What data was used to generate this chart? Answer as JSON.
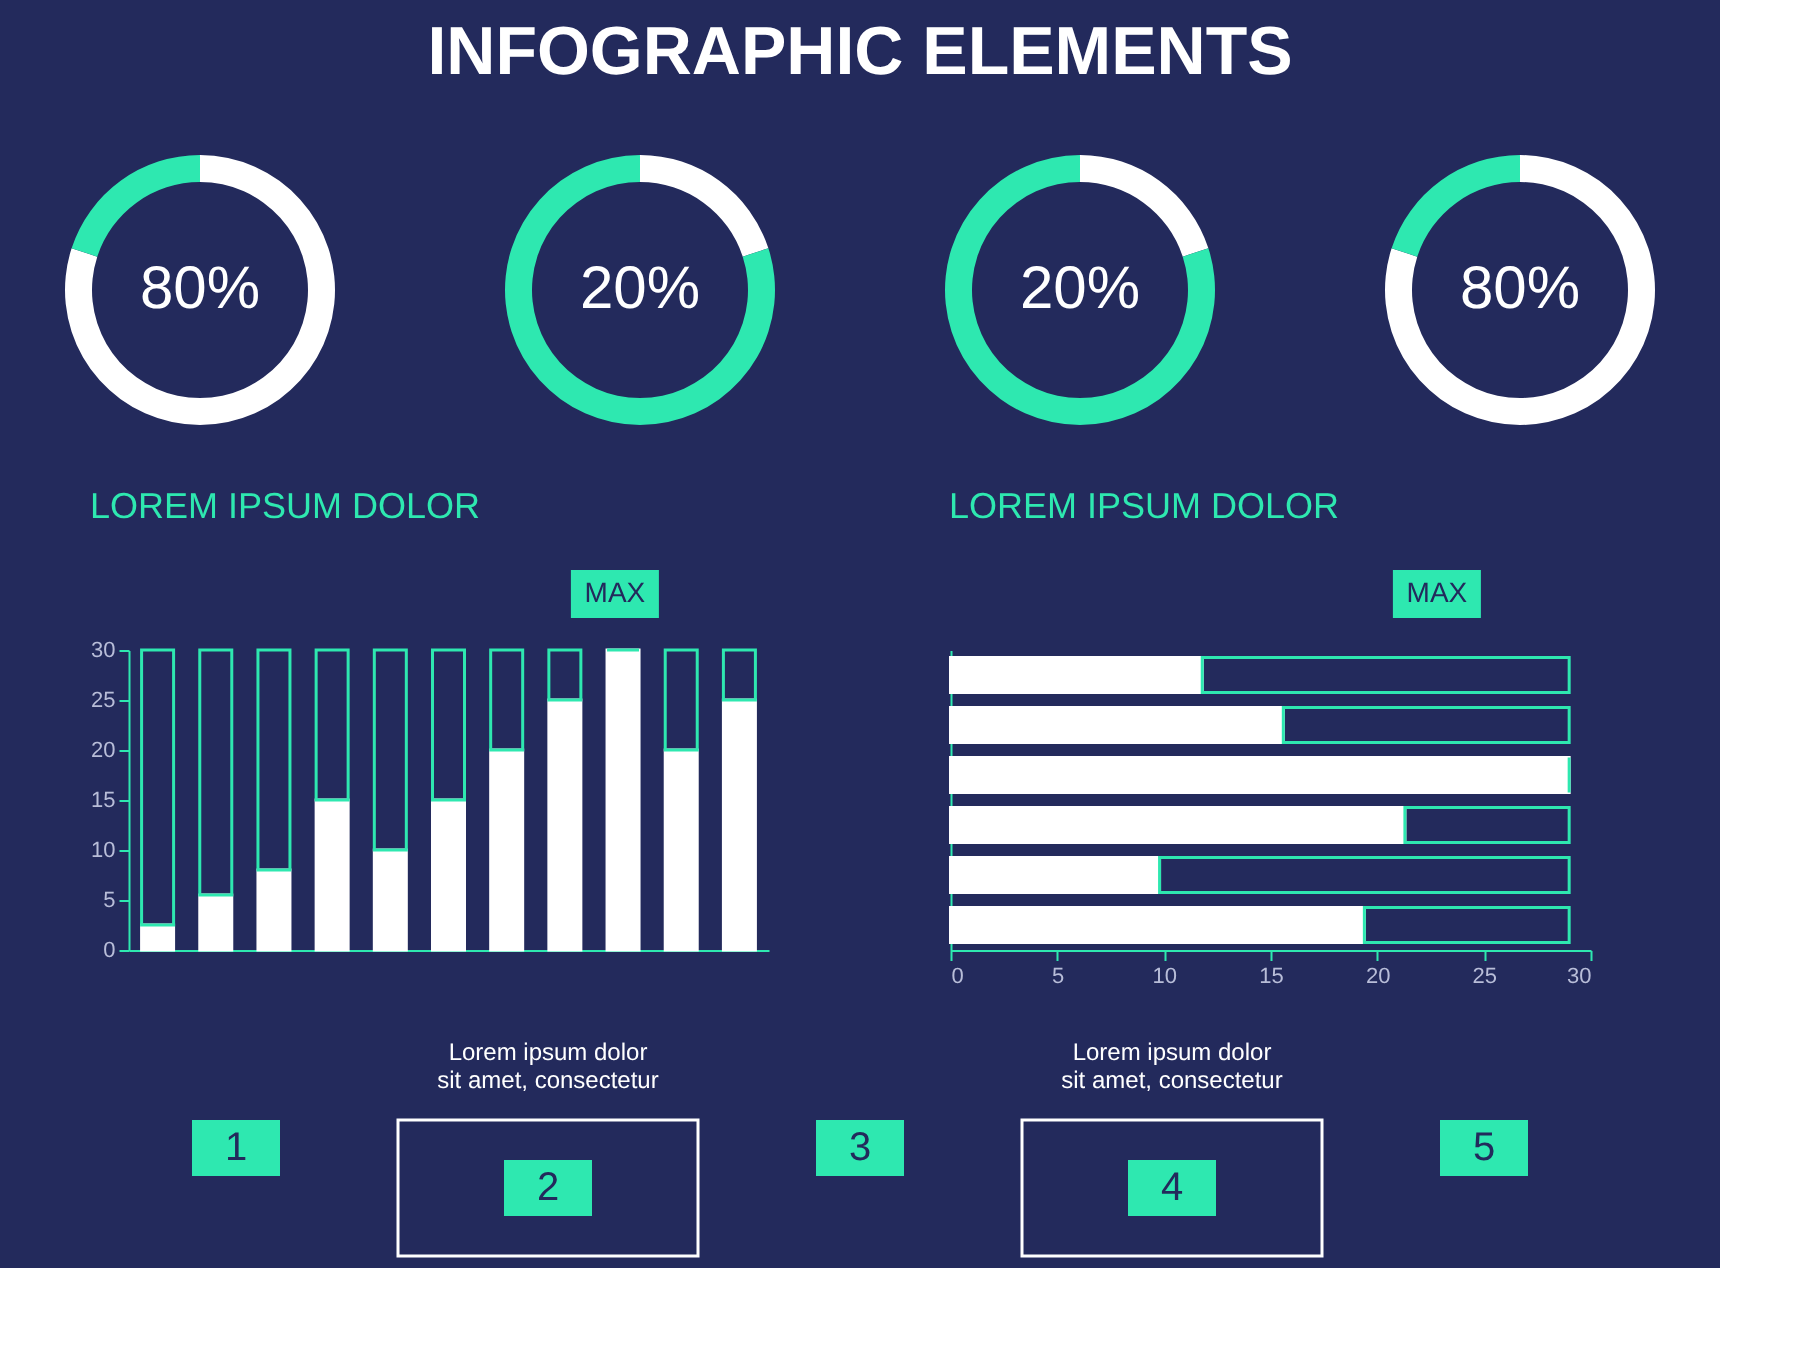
{
  "chart_data": [
    {
      "type": "other",
      "title": "INFOGRAPHIC ELEMENTS"
    },
    {
      "type": "donut",
      "categories": [
        null,
        null
      ],
      "values": [
        80,
        20
      ],
      "colors": [
        "#ffffff",
        "#2ee8b0"
      ],
      "annotations": [
        "80%"
      ]
    },
    {
      "type": "donut",
      "categories": [
        null,
        null
      ],
      "values": [
        20,
        80
      ],
      "colors": [
        "#ffffff",
        "#2ee8b0"
      ],
      "annotations": [
        "20%"
      ]
    },
    {
      "type": "donut",
      "categories": [
        null,
        null
      ],
      "values": [
        20,
        80
      ],
      "colors": [
        "#ffffff",
        "#2ee8b0"
      ],
      "annotations": [
        "20%"
      ]
    },
    {
      "type": "donut",
      "categories": [
        null,
        null
      ],
      "values": [
        80,
        20
      ],
      "colors": [
        "#ffffff",
        "#2ee8b0"
      ],
      "annotations": [
        "80%"
      ]
    },
    {
      "type": "bar",
      "title": "LOREM IPSUM DOLOR",
      "stacked": true,
      "categories": [
        null,
        null,
        null,
        null,
        null,
        null,
        null,
        null,
        null,
        null,
        null
      ],
      "ylim": [
        0,
        30
      ],
      "yticks": [
        0,
        5,
        10,
        15,
        20,
        25,
        30
      ],
      "annotations": [
        "MAX"
      ],
      "series": [
        {
          "color": "#ffffff",
          "values": [
            2.5,
            5.5,
            8,
            15,
            10,
            15,
            20,
            25,
            30,
            20,
            25
          ]
        },
        {
          "color": "#2ee8b0",
          "values": [
            27.5,
            24.5,
            22,
            15,
            20,
            15,
            10,
            5,
            0,
            10,
            5
          ]
        }
      ]
    },
    {
      "type": "bar",
      "title": "LOREM IPSUM DOLOR",
      "stacked": true,
      "orientation": "horizontal",
      "categories": [
        null,
        null,
        null,
        null,
        null,
        null
      ],
      "xlim": [
        0,
        30
      ],
      "xticks": [
        0,
        5,
        10,
        15,
        20,
        25,
        30
      ],
      "annotations": [
        "MAX"
      ],
      "series": [
        {
          "color": "#ffffff",
          "values": [
            11.8,
            15.6,
            29,
            21.3,
            9.8,
            19.4
          ]
        },
        {
          "color": "#2ee8b0",
          "values": [
            17.2,
            13.4,
            0,
            7.7,
            19.2,
            9.6
          ]
        }
      ]
    },
    {
      "type": "other",
      "annotations": [
        "1",
        "Lorem ipsum dolor\nsit amet, consectetur",
        "2",
        "3",
        "Lorem ipsum dolor\nsit amet, consectetur",
        "4",
        "5"
      ]
    }
  ]
}
